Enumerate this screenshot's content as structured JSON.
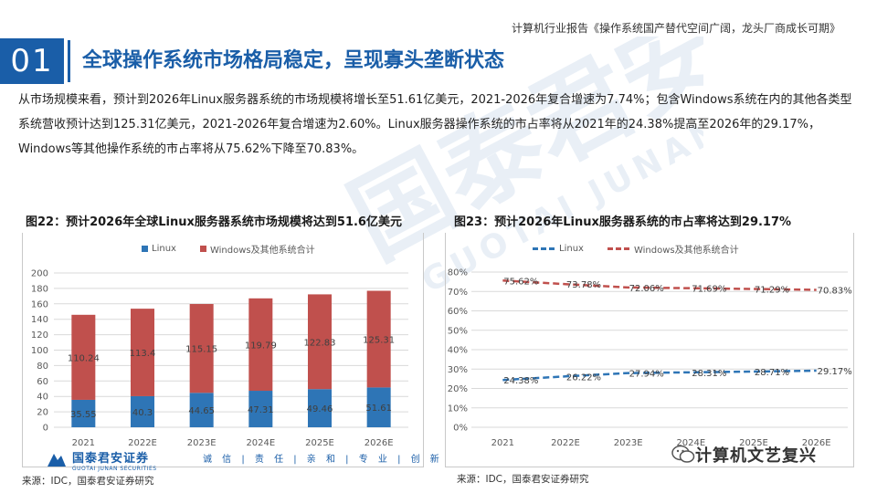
{
  "header": {
    "report_title": "计算机行业报告《操作系统国产替代空间广阔，龙头厂商成长可期》"
  },
  "section": {
    "number": "01",
    "title": "全球操作系统市场格局稳定，呈现寡头垄断状态"
  },
  "intro": "从市场规模来看，预计到2026年Linux服务器系统的市场规模将增长至51.61亿美元，2021-2026年复合增速为7.74%；包含Windows系统在内的其他各类型系统营收预计达到125.31亿美元，2021-2026年复合增速为2.60%。Linux服务器操作系统的市占率将从2021年的24.38%提高至2026年的29.17%，Windows等其他操作系统的市占率将从75.62%下降至70.83%。",
  "watermark": {
    "cn": "国泰君安",
    "en": "GUOTAI JUNAN"
  },
  "footer": {
    "logo_cn": "国泰君安证券",
    "logo_en": "GUOTAI JUNAN SECURITIES",
    "slogan": "诚 信 | 责 任 | 亲 和 | 专 业 | 创 新",
    "wechat_name": "计算机文艺复兴"
  },
  "chart_data": [
    {
      "id": "fig22",
      "type": "bar",
      "stacked": true,
      "title": "图22：预计2026年全球Linux服务器系统市场规模将达到51.6亿美元",
      "categories": [
        "2021",
        "2022E",
        "2023E",
        "2024E",
        "2025E",
        "2026E"
      ],
      "series": [
        {
          "name": "Linux",
          "color": "#2e75b6",
          "values": [
            35.55,
            40.3,
            44.65,
            47.31,
            49.46,
            51.61
          ],
          "labels": [
            "35.55",
            "40.3",
            "44.65",
            "47.31",
            "49.46",
            "51.61"
          ]
        },
        {
          "name": "Windows及其他系统合计",
          "color": "#c0504d",
          "values": [
            110.24,
            113.4,
            115.15,
            119.79,
            122.83,
            125.31
          ],
          "labels": [
            "110.24",
            "113.4",
            "115.15",
            "119.79",
            "122.83",
            "125.31"
          ]
        }
      ],
      "ylim": [
        0,
        200
      ],
      "yticks": [
        "0",
        "20",
        "40",
        "60",
        "80",
        "100",
        "120",
        "140",
        "160",
        "180",
        "200"
      ],
      "grid": true,
      "legend": "top-center",
      "source": "来源：IDC，国泰君安证券研究"
    },
    {
      "id": "fig23",
      "type": "line",
      "title": "图23：预计2026年Linux服务器系统的市占率将达到29.17%",
      "categories": [
        "2021",
        "2022E",
        "2023E",
        "2024E",
        "2025E",
        "2026E"
      ],
      "series": [
        {
          "name": "Linux",
          "color": "#2e75b6",
          "values": [
            24.38,
            26.22,
            27.94,
            28.31,
            28.71,
            29.17
          ],
          "labels": [
            "24.38%",
            "26.22%",
            "27.94%",
            "28.31%",
            "28.71%",
            "29.17%"
          ]
        },
        {
          "name": "Windows及其他系统合计",
          "color": "#c0504d",
          "values": [
            75.62,
            73.78,
            72.06,
            71.69,
            71.29,
            70.83
          ],
          "labels": [
            "75.62%",
            "73.78%",
            "72.06%",
            "71.69%",
            "71.29%",
            "70.83%"
          ]
        }
      ],
      "ylim": [
        0,
        80
      ],
      "yticks": [
        "0%",
        "10%",
        "20%",
        "30%",
        "40%",
        "50%",
        "60%",
        "70%",
        "80%"
      ],
      "grid": true,
      "legend": "top-center",
      "source": "来源：IDC，国泰君安证券研究"
    }
  ]
}
